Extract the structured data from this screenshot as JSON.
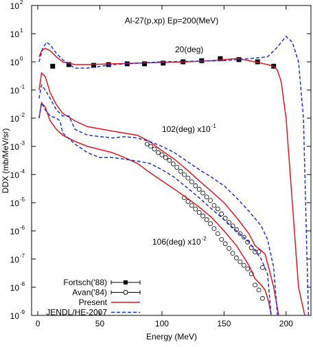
{
  "chart_data": {
    "type": "line",
    "title": "Al-27(p,xp)  Ep=200(MeV)",
    "x_label": "Energy (MeV)",
    "y_label": "DDX (mb/MeV/sr)",
    "log_y": true,
    "xlim": [
      -5,
      220
    ],
    "ylim": [
      1e-09,
      100
    ],
    "xticks": [
      0,
      50,
      100,
      150,
      200
    ],
    "yticks": [
      {
        "value": 1e-09,
        "label": "10",
        "sup": "-9"
      },
      {
        "value": 1e-08,
        "label": "10",
        "sup": "-8"
      },
      {
        "value": 1e-07,
        "label": "10",
        "sup": "-7"
      },
      {
        "value": 1e-06,
        "label": "10",
        "sup": "-6"
      },
      {
        "value": 1e-05,
        "label": "10",
        "sup": "-5"
      },
      {
        "value": 0.0001,
        "label": "10",
        "sup": "-4"
      },
      {
        "value": 0.001,
        "label": "10",
        "sup": "-3"
      },
      {
        "value": 0.01,
        "label": "10",
        "sup": "-2"
      },
      {
        "value": 0.1,
        "label": "10",
        "sup": "-1"
      },
      {
        "value": 1,
        "label": "10",
        "sup": "0"
      },
      {
        "value": 10,
        "label": "10",
        "sup": "1"
      },
      {
        "value": 100,
        "label": "10",
        "sup": "2"
      }
    ],
    "annotations": [
      {
        "text": "20(deg)"
      },
      {
        "text": "102(deg) x10",
        "sup": "-1"
      },
      {
        "text": "106(deg) x10",
        "sup": "-2"
      }
    ],
    "series": [
      {
        "name": "Fortsch('88)",
        "kind": "points",
        "marker": "square",
        "color": "#000000",
        "x": [
          12,
          25,
          45,
          57,
          72,
          86,
          101,
          117,
          132,
          147,
          162,
          177,
          190
        ],
        "values": [
          0.7,
          0.8,
          0.75,
          0.8,
          0.85,
          0.85,
          0.9,
          1.0,
          1.1,
          1.3,
          1.2,
          1.0,
          0.7
        ]
      },
      {
        "name": "Avan('84)",
        "kind": "points",
        "marker": "circle",
        "color": "#000000",
        "x": [
          88,
          91,
          94,
          97,
          100,
          103,
          106,
          109,
          112,
          115,
          118,
          121,
          124,
          127,
          130,
          133,
          136,
          139,
          142,
          145,
          148,
          151,
          154,
          157,
          160,
          163,
          166,
          169,
          172,
          175,
          178,
          181,
          118,
          121,
          124,
          127,
          130,
          133,
          136,
          139,
          142,
          145,
          148,
          151,
          154,
          157,
          160,
          163,
          166,
          169,
          172,
          175,
          178,
          181
        ],
        "values": [
          0.0012,
          0.001,
          0.0008,
          0.0006,
          0.0005,
          0.0004,
          0.00032,
          0.00024,
          0.00018,
          0.00013,
          0.0001,
          7.5e-05,
          5.5e-05,
          4e-05,
          3e-05,
          2.2e-05,
          1.6e-05,
          1.2e-05,
          8e-06,
          6e-06,
          4e-06,
          2.8e-06,
          2e-06,
          1.5e-06,
          1.1e-06,
          8e-07,
          6e-07,
          4e-07,
          2.5e-07,
          1.8e-07,
          1.8e-07,
          5e-08,
          1.5e-05,
          1.1e-05,
          8e-06,
          6e-06,
          4.5e-06,
          3.4e-06,
          2.5e-06,
          1.8e-06,
          1.2e-06,
          8e-07,
          5e-07,
          3.5e-07,
          2.4e-07,
          1.6e-07,
          1.1e-07,
          8e-08,
          6e-08,
          4.5e-08,
          3e-08,
          1.2e-08,
          8e-09,
          4e-09
        ]
      },
      {
        "name": "Present",
        "kind": "line",
        "dash": false,
        "color": "#e0141e",
        "lines": [
          {
            "x": [
              1,
              3,
              6,
              10,
              15,
              20,
              30,
              40,
              60,
              80,
              100,
              120,
              140,
              160,
              170,
              180,
              185,
              190,
              193,
              196,
              200,
              205,
              210,
              215
            ],
            "values": [
              1.5,
              2.5,
              3,
              2.5,
              1.5,
              1,
              0.8,
              0.8,
              0.85,
              0.9,
              0.95,
              1.0,
              1.1,
              1.3,
              1.1,
              0.9,
              0.8,
              0.7,
              0.5,
              0.2,
              0.01,
              1e-05,
              1e-08,
              1e-09
            ]
          },
          {
            "x": [
              1,
              3,
              6,
              10,
              15,
              20,
              30,
              40,
              60,
              80,
              90,
              100,
              110,
              120,
              130,
              140,
              150,
              160,
              170,
              175,
              180,
              183,
              186,
              190,
              194
            ],
            "values": [
              0.1,
              0.4,
              0.3,
              0.08,
              0.03,
              0.015,
              0.008,
              0.005,
              0.0035,
              0.0025,
              0.0015,
              0.0007,
              0.00035,
              0.00015,
              6e-05,
              2.5e-05,
              1e-05,
              3e-06,
              8e-07,
              3e-07,
              2e-07,
              1.5e-07,
              5e-08,
              1e-08,
              1e-09
            ]
          },
          {
            "x": [
              1,
              3,
              6,
              10,
              15,
              20,
              30,
              40,
              60,
              70,
              80,
              90,
              100,
              110,
              120,
              130,
              140,
              150,
              160,
              170,
              175,
              180,
              183,
              186,
              188
            ],
            "values": [
              0.01,
              0.035,
              0.025,
              0.008,
              0.004,
              0.0025,
              0.0015,
              0.001,
              0.0006,
              0.0004,
              0.00025,
              0.00012,
              6e-05,
              3e-05,
              1.5e-05,
              7e-06,
              3e-06,
              1e-06,
              3e-07,
              6e-08,
              2e-08,
              1.2e-08,
              8e-09,
              3e-09,
              1e-09
            ]
          }
        ]
      },
      {
        "name": "JENDL/HE-2007",
        "kind": "line",
        "dash": true,
        "color": "#1a2fd6",
        "lines": [
          {
            "x": [
              1,
              4,
              7,
              10,
              15,
              20,
              30,
              40,
              60,
              100,
              150,
              170,
              185,
              192,
              200,
              205,
              210,
              214,
              218
            ],
            "values": [
              1,
              3,
              5,
              4,
              2,
              1.2,
              0.6,
              0.6,
              0.8,
              1,
              1.1,
              1.3,
              1.5,
              3,
              8,
              5,
              1,
              0.01,
              1e-09
            ]
          },
          {
            "x": [
              1,
              3,
              6,
              10,
              15,
              20,
              25,
              30,
              40,
              60,
              70,
              80,
              90,
              100,
              110,
              120,
              130,
              140,
              150,
              160,
              170,
              180,
              185,
              190,
              193
            ],
            "values": [
              0.05,
              0.15,
              0.1,
              0.05,
              0.02,
              0.012,
              0.012,
              0.004,
              0.0025,
              0.002,
              0.0022,
              0.002,
              0.0015,
              0.001,
              0.0006,
              0.0003,
              0.00015,
              8e-05,
              4e-05,
              1.5e-05,
              5e-06,
              1.5e-06,
              5e-07,
              5e-08,
              1e-09
            ]
          },
          {
            "x": [
              1,
              3,
              6,
              10,
              15,
              18,
              20,
              30,
              40,
              50,
              60,
              70,
              80,
              90,
              100,
              110,
              120,
              130,
              140,
              150,
              160,
              170,
              180,
              185,
              188
            ],
            "values": [
              0.01,
              0.035,
              0.02,
              0.012,
              0.01,
              0.008,
              0.003,
              0.0012,
              0.0006,
              0.0004,
              0.0004,
              0.00035,
              0.0003,
              0.00025,
              0.00015,
              8e-05,
              3.5e-05,
              1.5e-05,
              6e-06,
              2.5e-06,
              1e-06,
              4e-07,
              1e-07,
              3e-08,
              1e-09
            ]
          }
        ]
      }
    ]
  }
}
